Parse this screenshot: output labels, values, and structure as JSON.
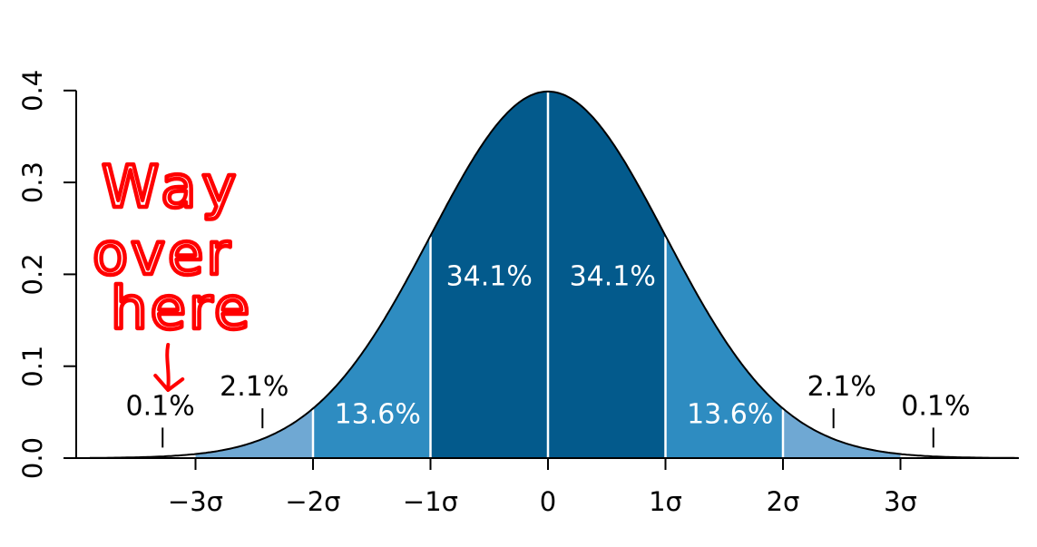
{
  "chart_data": {
    "type": "area",
    "title": "",
    "xlabel": "",
    "ylabel": "",
    "xlim": [
      -3.9,
      4.0
    ],
    "ylim": [
      0,
      0.4
    ],
    "x_ticks": [
      {
        "value": -3,
        "label": "−3σ"
      },
      {
        "value": -2,
        "label": "−2σ"
      },
      {
        "value": -1,
        "label": "−1σ"
      },
      {
        "value": 0,
        "label": "0"
      },
      {
        "value": 1,
        "label": "1σ"
      },
      {
        "value": 2,
        "label": "2σ"
      },
      {
        "value": 3,
        "label": "3σ"
      }
    ],
    "y_ticks": [
      {
        "value": 0.0,
        "label": "0.0"
      },
      {
        "value": 0.1,
        "label": "0.1"
      },
      {
        "value": 0.2,
        "label": "0.2"
      },
      {
        "value": 0.3,
        "label": "0.3"
      },
      {
        "value": 0.4,
        "label": "0.4"
      }
    ],
    "curve": "normal density, mean 0, sd 1",
    "bands": [
      {
        "from": -3,
        "to": -2,
        "color": "#6fa8d3"
      },
      {
        "from": -2,
        "to": -1,
        "color": "#2e8cc1"
      },
      {
        "from": -1,
        "to": 0,
        "color": "#035a8c"
      },
      {
        "from": 0,
        "to": 1,
        "color": "#035a8c"
      },
      {
        "from": 1,
        "to": 2,
        "color": "#2e8cc1"
      },
      {
        "from": 2,
        "to": 3,
        "color": "#6fa8d3"
      }
    ],
    "band_labels": [
      {
        "text": "34.1%",
        "x": -0.5,
        "y": 0.188,
        "color": "white"
      },
      {
        "text": "34.1%",
        "x": 0.55,
        "y": 0.188,
        "color": "white"
      },
      {
        "text": "13.6%",
        "x": -1.45,
        "y": 0.038,
        "color": "white"
      },
      {
        "text": "13.6%",
        "x": 1.55,
        "y": 0.038,
        "color": "white"
      },
      {
        "text": "2.1%",
        "x": -2.5,
        "y": 0.068,
        "color": "black",
        "tick_x": -2.43
      },
      {
        "text": "2.1%",
        "x": 2.5,
        "y": 0.068,
        "color": "black",
        "tick_x": 2.43
      },
      {
        "text": "0.1%",
        "x": -3.3,
        "y": 0.047,
        "color": "black",
        "tick_x": -3.28
      },
      {
        "text": "0.1%",
        "x": 3.3,
        "y": 0.047,
        "color": "black",
        "tick_x": 3.28
      }
    ],
    "annotation": {
      "lines": [
        "Way",
        "over",
        "here"
      ],
      "color": "#ff0000",
      "arrow_to_x": -3.28
    }
  }
}
